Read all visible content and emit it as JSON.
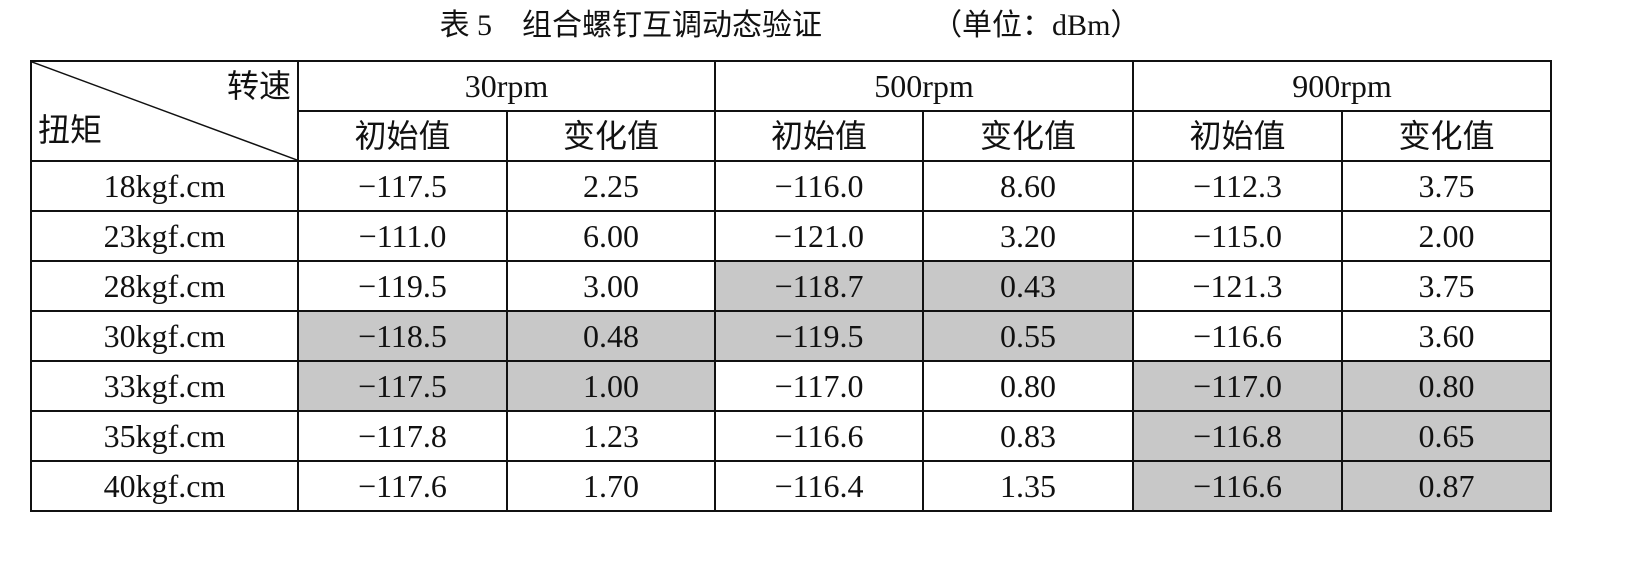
{
  "title": "表 5　组合螺钉互调动态验证",
  "unit": "（单位：dBm）",
  "table": {
    "corner": {
      "column_header": "转速",
      "row_header": "扭矩"
    },
    "groups": [
      "30rpm",
      "500rpm",
      "900rpm"
    ],
    "subheaders": [
      "初始值",
      "变化值",
      "初始值",
      "变化值",
      "初始值",
      "变化值"
    ],
    "rows": [
      [
        "18kgf.cm",
        "−117.5",
        "2.25",
        "−116.0",
        "8.60",
        "−112.3",
        "3.75"
      ],
      [
        "23kgf.cm",
        "−111.0",
        "6.00",
        "−121.0",
        "3.20",
        "−115.0",
        "2.00"
      ],
      [
        "28kgf.cm",
        "−119.5",
        "3.00",
        "−118.7",
        "0.43",
        "−121.3",
        "3.75"
      ],
      [
        "30kgf.cm",
        "−118.5",
        "0.48",
        "−119.5",
        "0.55",
        "−116.6",
        "3.60"
      ],
      [
        "33kgf.cm",
        "−117.5",
        "1.00",
        "−117.0",
        "0.80",
        "−117.0",
        "0.80"
      ],
      [
        "35kgf.cm",
        "−117.8",
        "1.23",
        "−116.6",
        "0.83",
        "−116.8",
        "0.65"
      ],
      [
        "40kgf.cm",
        "−117.6",
        "1.70",
        "−116.4",
        "1.35",
        "−116.6",
        "0.87"
      ]
    ]
  }
}
